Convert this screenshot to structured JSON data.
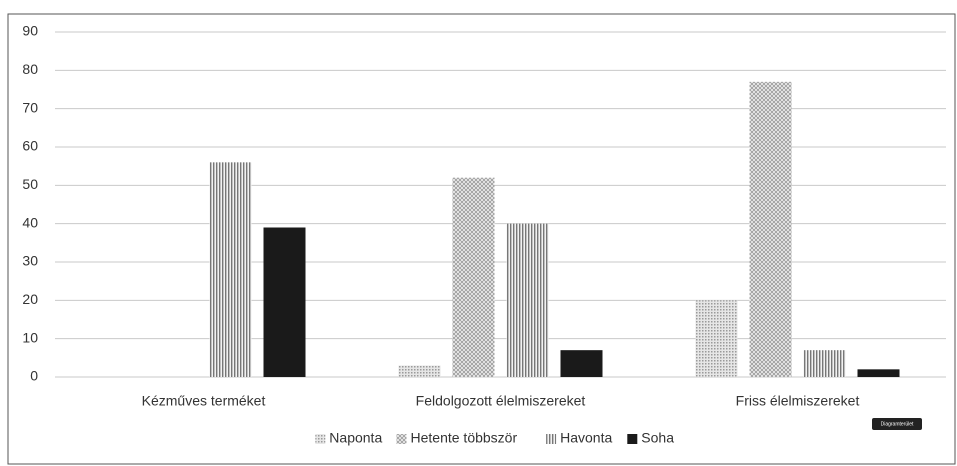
{
  "chart_data": {
    "type": "bar",
    "categories": [
      "Kézműves terméket",
      "Feldolgozott élelmiszereket",
      "Friss élelmiszereket"
    ],
    "series": [
      {
        "name": "Naponta",
        "color": "#c8c8c8",
        "pattern": "dots",
        "values": [
          0,
          3,
          20
        ]
      },
      {
        "name": "Hetente többször",
        "color": "#bdbdbd",
        "pattern": "crosshatch",
        "values": [
          0,
          52,
          77
        ]
      },
      {
        "name": "Havonta",
        "color": "#9a9a9a",
        "pattern": "vertical",
        "values": [
          56,
          40,
          7
        ]
      },
      {
        "name": "Soha",
        "color": "#1a1a1a",
        "pattern": "solid",
        "values": [
          39,
          7,
          2
        ]
      }
    ],
    "ylim": [
      0,
      90
    ],
    "yticks": [
      0,
      10,
      20,
      30,
      40,
      50,
      60,
      70,
      80,
      90
    ],
    "grid": true,
    "legend": "bottom",
    "tooltip": "Diagramterület"
  }
}
